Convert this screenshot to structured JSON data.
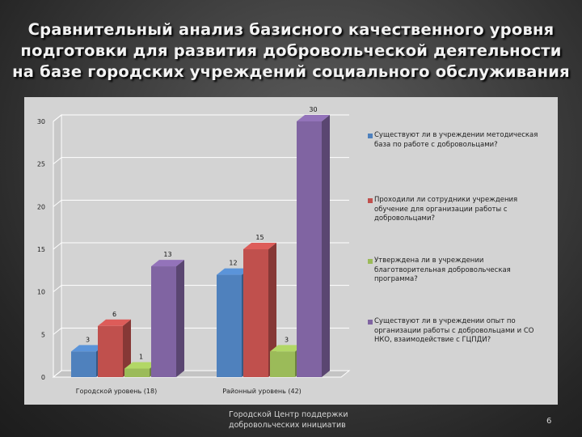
{
  "title": "Сравнительный анализ базисного качественного уровня подготовки для развития добровольческой деятельности на базе городских учреждений социального обслуживания",
  "chart_data": {
    "type": "bar",
    "categories": [
      "Городской уровень (18)",
      "Районный уровень (42)"
    ],
    "series": [
      {
        "name": "Существуют ли в учреждении методическая база по работе с добровольцами?",
        "values": [
          3,
          12
        ],
        "color": "#4f81bd"
      },
      {
        "name": "Проходили ли сотрудники учреждения обучение для организации работы с добровольцами?",
        "values": [
          6,
          15
        ],
        "color": "#c0504d"
      },
      {
        "name": "Утверждена ли в учреждении благотворительная добровольческая программа?",
        "values": [
          1,
          3
        ],
        "color": "#9bbb59"
      },
      {
        "name": "Существуют ли в учреждении опыт по организации работы с добровольцами и СО НКО, взаимодействие с ГЦПДИ?",
        "values": [
          13,
          30
        ],
        "color": "#8064a2"
      }
    ],
    "y_ticks": [
      "0",
      "5",
      "10",
      "15",
      "20",
      "25",
      "30"
    ],
    "ylim": [
      0,
      30
    ],
    "grid": true,
    "legend_position": "right",
    "three_d": true
  },
  "footer": {
    "org_line1": "Городской Центр поддержки",
    "org_line2": "добровольческих инициатив",
    "page_number": "6"
  }
}
